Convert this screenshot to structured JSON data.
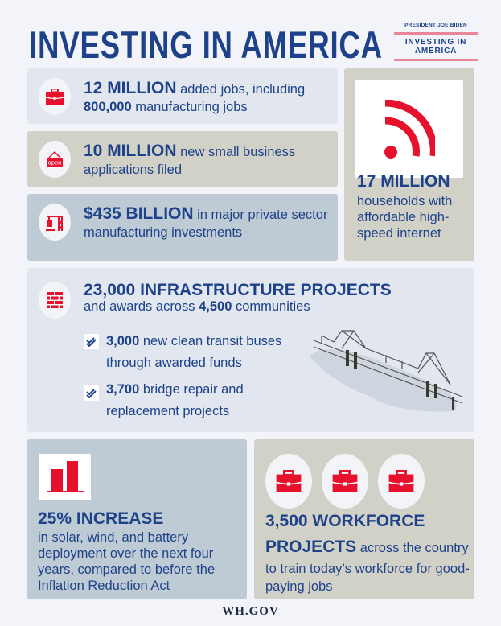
{
  "header": {
    "title": "INVESTING IN AMERICA",
    "logo": {
      "pretitle": "PRESIDENT JOE BIDEN",
      "name_line1": "INVESTING IN",
      "name_line2": "AMERICA"
    }
  },
  "colors": {
    "navy": "#1d4289",
    "red": "#e8112d",
    "background": "#f2f4f9",
    "light_blue_card": "#e2e6ef",
    "tan_card": "#d2d1c8",
    "steel_card": "#bfcbd4"
  },
  "stats": {
    "jobs": {
      "icon": "briefcase-icon",
      "highlight": "12 MILLION",
      "text1": " added jobs, including",
      "highlight2": "800,000",
      "text2": " manufacturing jobs"
    },
    "business": {
      "icon": "open-sign-icon",
      "icon_label": "open",
      "highlight": "10 MILLION",
      "text": " new small business applications filed"
    },
    "investment": {
      "icon": "crane-icon",
      "highlight": "$435 BILLION",
      "text": " in major private sector manufacturing investments"
    },
    "internet": {
      "icon": "wifi-signal-icon",
      "highlight": "17 MILLION",
      "text": "households with affordable high-speed internet"
    },
    "infrastructure": {
      "icon": "brick-wall-icon",
      "highlight": "23,000 INFRASTRUCTURE PROJECTS",
      "text1": "and awards across ",
      "highlight2": "4,500",
      "text2": " communities",
      "items": [
        {
          "highlight": "3,000",
          "text": " new clean transit buses through awarded funds"
        },
        {
          "highlight": "3,700",
          "text": " bridge repair and replacement projects"
        }
      ]
    },
    "clean_energy": {
      "icon": "bar-chart-icon",
      "highlight": "25% INCREASE",
      "text": "in solar, wind, and battery deployment over the next four years, compared to before the Inflation Reduction Act"
    },
    "workforce": {
      "icon": "briefcase-icon",
      "highlight": "3,500 WORKFORCE PROJECTS",
      "text": " across the country to train today’s workforce for good-paying jobs"
    }
  },
  "footer": {
    "text": "WH.GOV"
  }
}
